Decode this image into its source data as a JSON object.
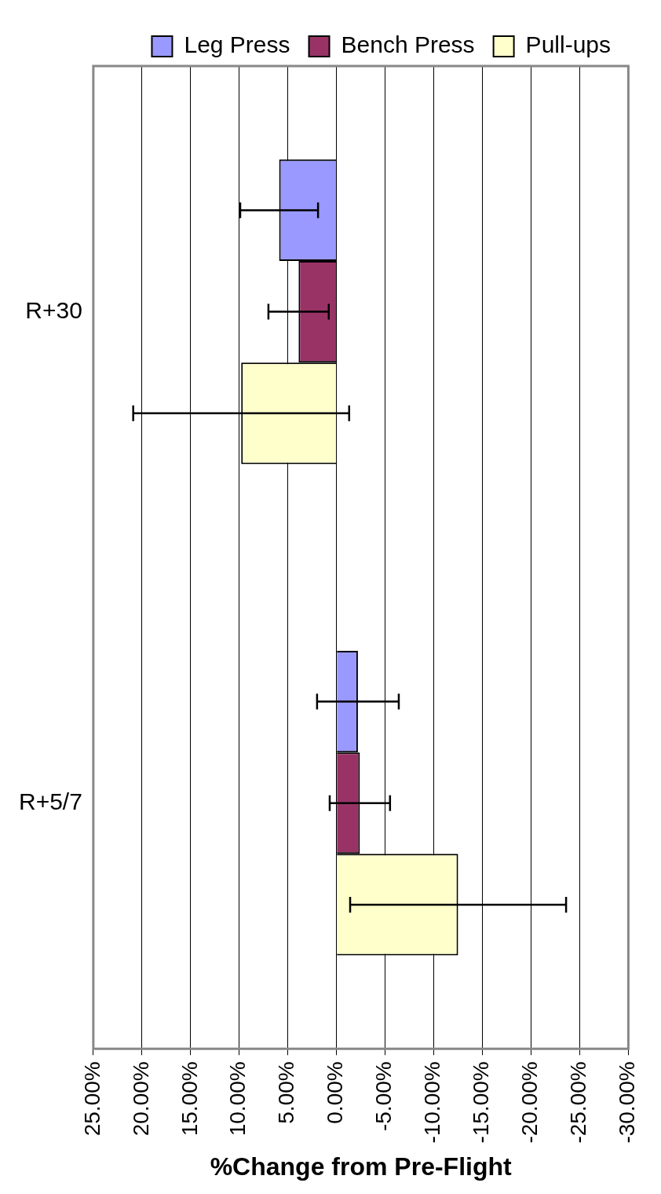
{
  "chart_data": {
    "type": "bar",
    "orientation": "horizontal",
    "xlabel": "%Change from Pre-Flight",
    "categories": [
      "R+30",
      "R+5/7"
    ],
    "series": [
      {
        "name": "Leg Press",
        "color": "#9999ff",
        "values": [
          5.9,
          -2.2
        ],
        "errors": [
          4.0,
          4.2
        ]
      },
      {
        "name": "Bench Press",
        "color": "#993366",
        "values": [
          3.9,
          -2.4
        ],
        "errors": [
          3.1,
          3.1
        ]
      },
      {
        "name": "Pull-ups",
        "color": "#ffffcc",
        "values": [
          9.8,
          -12.5
        ],
        "errors": [
          11.1,
          11.1
        ]
      }
    ],
    "xlim": [
      25,
      -30
    ],
    "xticks": [
      {
        "value": 25,
        "label": "25.00%"
      },
      {
        "value": 20,
        "label": "20.00%"
      },
      {
        "value": 15,
        "label": "15.00%"
      },
      {
        "value": 10,
        "label": "10.00%"
      },
      {
        "value": 5,
        "label": "5.00%"
      },
      {
        "value": 0,
        "label": "0.00%"
      },
      {
        "value": -5,
        "label": "-5.00%"
      },
      {
        "value": -10,
        "label": "-10.00%"
      },
      {
        "value": -15,
        "label": "-15.00%"
      },
      {
        "value": -20,
        "label": "-20.00%"
      },
      {
        "value": -25,
        "label": "-25.00%"
      },
      {
        "value": -30,
        "label": "-30.00%"
      }
    ],
    "grid": "x",
    "legend": "top right"
  }
}
